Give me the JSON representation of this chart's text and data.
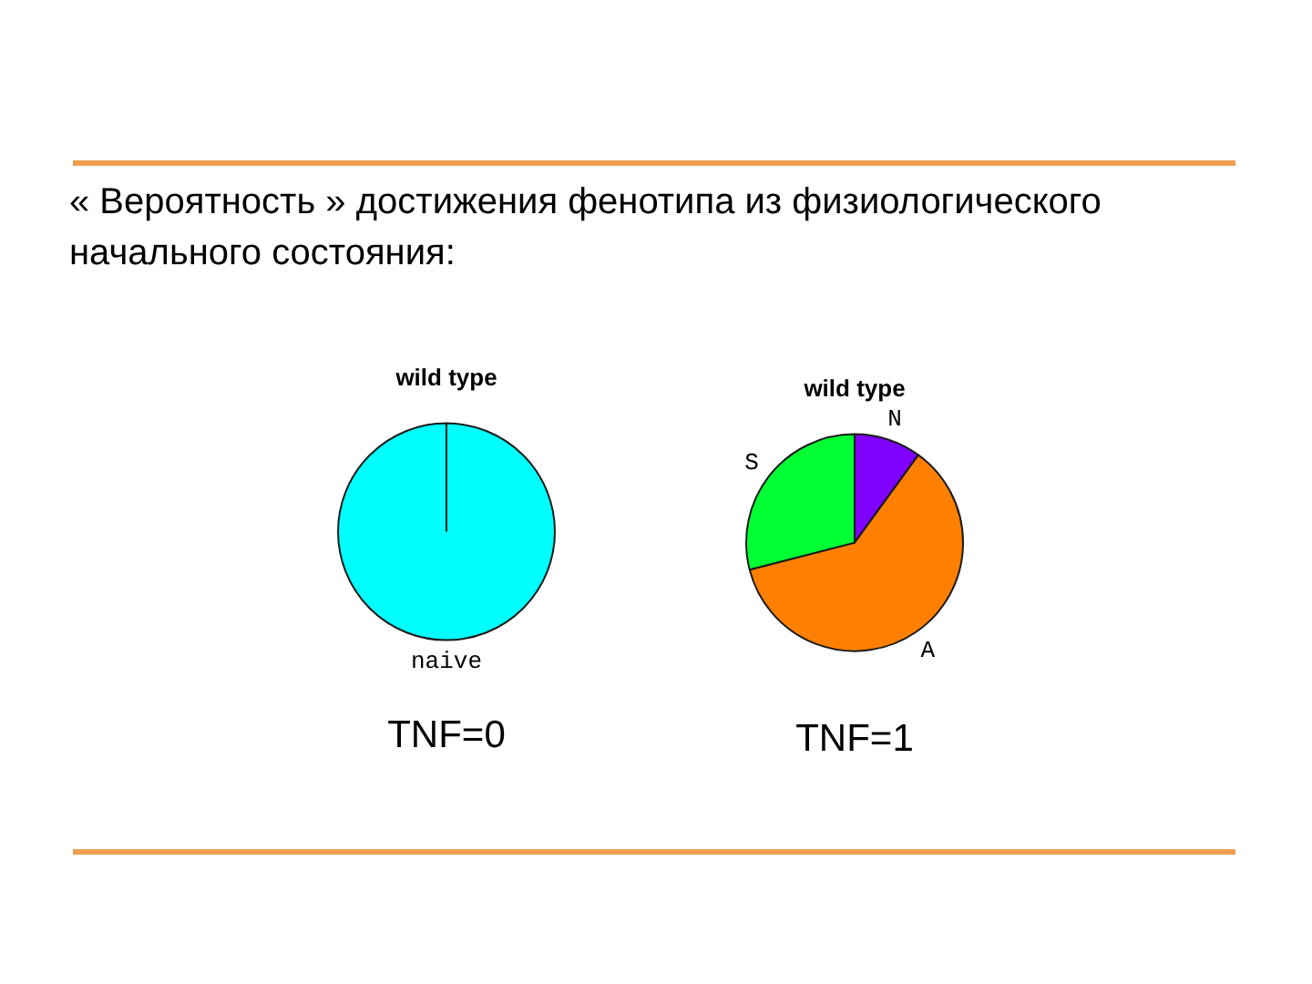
{
  "chart_data": [
    {
      "type": "pie",
      "title": "wild type",
      "categories": [
        "naive"
      ],
      "values": [
        100
      ],
      "colors": [
        "#00ffff"
      ],
      "legend": false,
      "annotations": [
        "« Вероятность » достижения фенотипа из физиологического начального состояния:",
        "TNF=0"
      ]
    },
    {
      "type": "pie",
      "title": "wild type",
      "categories": [
        "N",
        "A",
        "S"
      ],
      "values": [
        10,
        61,
        29
      ],
      "colors": [
        "#8000ff",
        "#ff8000",
        "#00ff33"
      ],
      "legend": false,
      "annotations": [
        "TNF=1"
      ]
    }
  ]
}
